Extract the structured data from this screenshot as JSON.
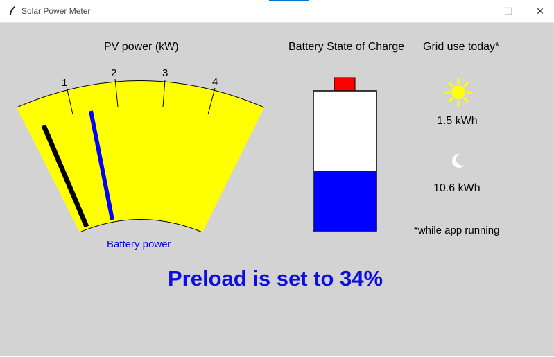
{
  "window": {
    "title": "Solar Power Meter",
    "min_glyph": "—",
    "max_glyph": "☐",
    "close_glyph": "✕"
  },
  "pv_meter": {
    "title": "PV power (kW)",
    "ticks": [
      "1",
      "2",
      "3",
      "4"
    ],
    "battery_label": "Battery power"
  },
  "battery": {
    "title": "Battery State of Charge",
    "charge_fraction": 0.43
  },
  "grid": {
    "title": "Grid use today*",
    "day_value": "1.5 kWh",
    "night_value": "10.6 kWh",
    "note": "*while app running"
  },
  "status": {
    "preload_text": "Preload is set to 34%"
  },
  "colors": {
    "gauge_face": "#ffff00",
    "battery_fill": "#0000ff",
    "battery_cap": "#ff0000",
    "pv_needle": "#000000",
    "battery_needle": "#0000ff",
    "sun": "#ffff00",
    "moon": "#ffffff",
    "preload_text": "#0d0ddf"
  }
}
